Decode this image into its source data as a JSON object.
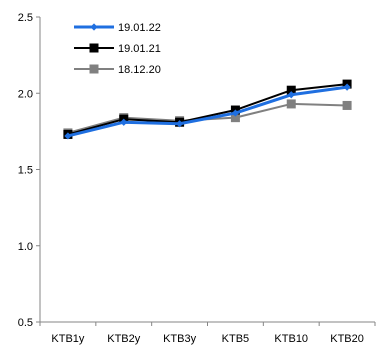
{
  "chart_data": {
    "type": "line",
    "categories": [
      "KTB1y",
      "KTB2y",
      "KTB3y",
      "KTB5",
      "KTB10",
      "KTB20"
    ],
    "ylim": [
      0.5,
      2.5
    ],
    "yticks": [
      "0.5",
      "1.0",
      "1.5",
      "2.0",
      "2.5"
    ],
    "grid": false,
    "legend_position": "top-left",
    "series": [
      {
        "name": "19.01.22",
        "values": [
          1.72,
          1.81,
          1.8,
          1.87,
          1.99,
          2.04
        ],
        "color": "#1f6fe0",
        "marker": "diamond"
      },
      {
        "name": "19.01.21",
        "values": [
          1.73,
          1.83,
          1.81,
          1.89,
          2.02,
          2.06
        ],
        "color": "#000000",
        "marker": "square"
      },
      {
        "name": "18.12.20",
        "values": [
          1.74,
          1.84,
          1.82,
          1.84,
          1.93,
          1.92
        ],
        "color": "#808080",
        "marker": "square"
      }
    ]
  }
}
